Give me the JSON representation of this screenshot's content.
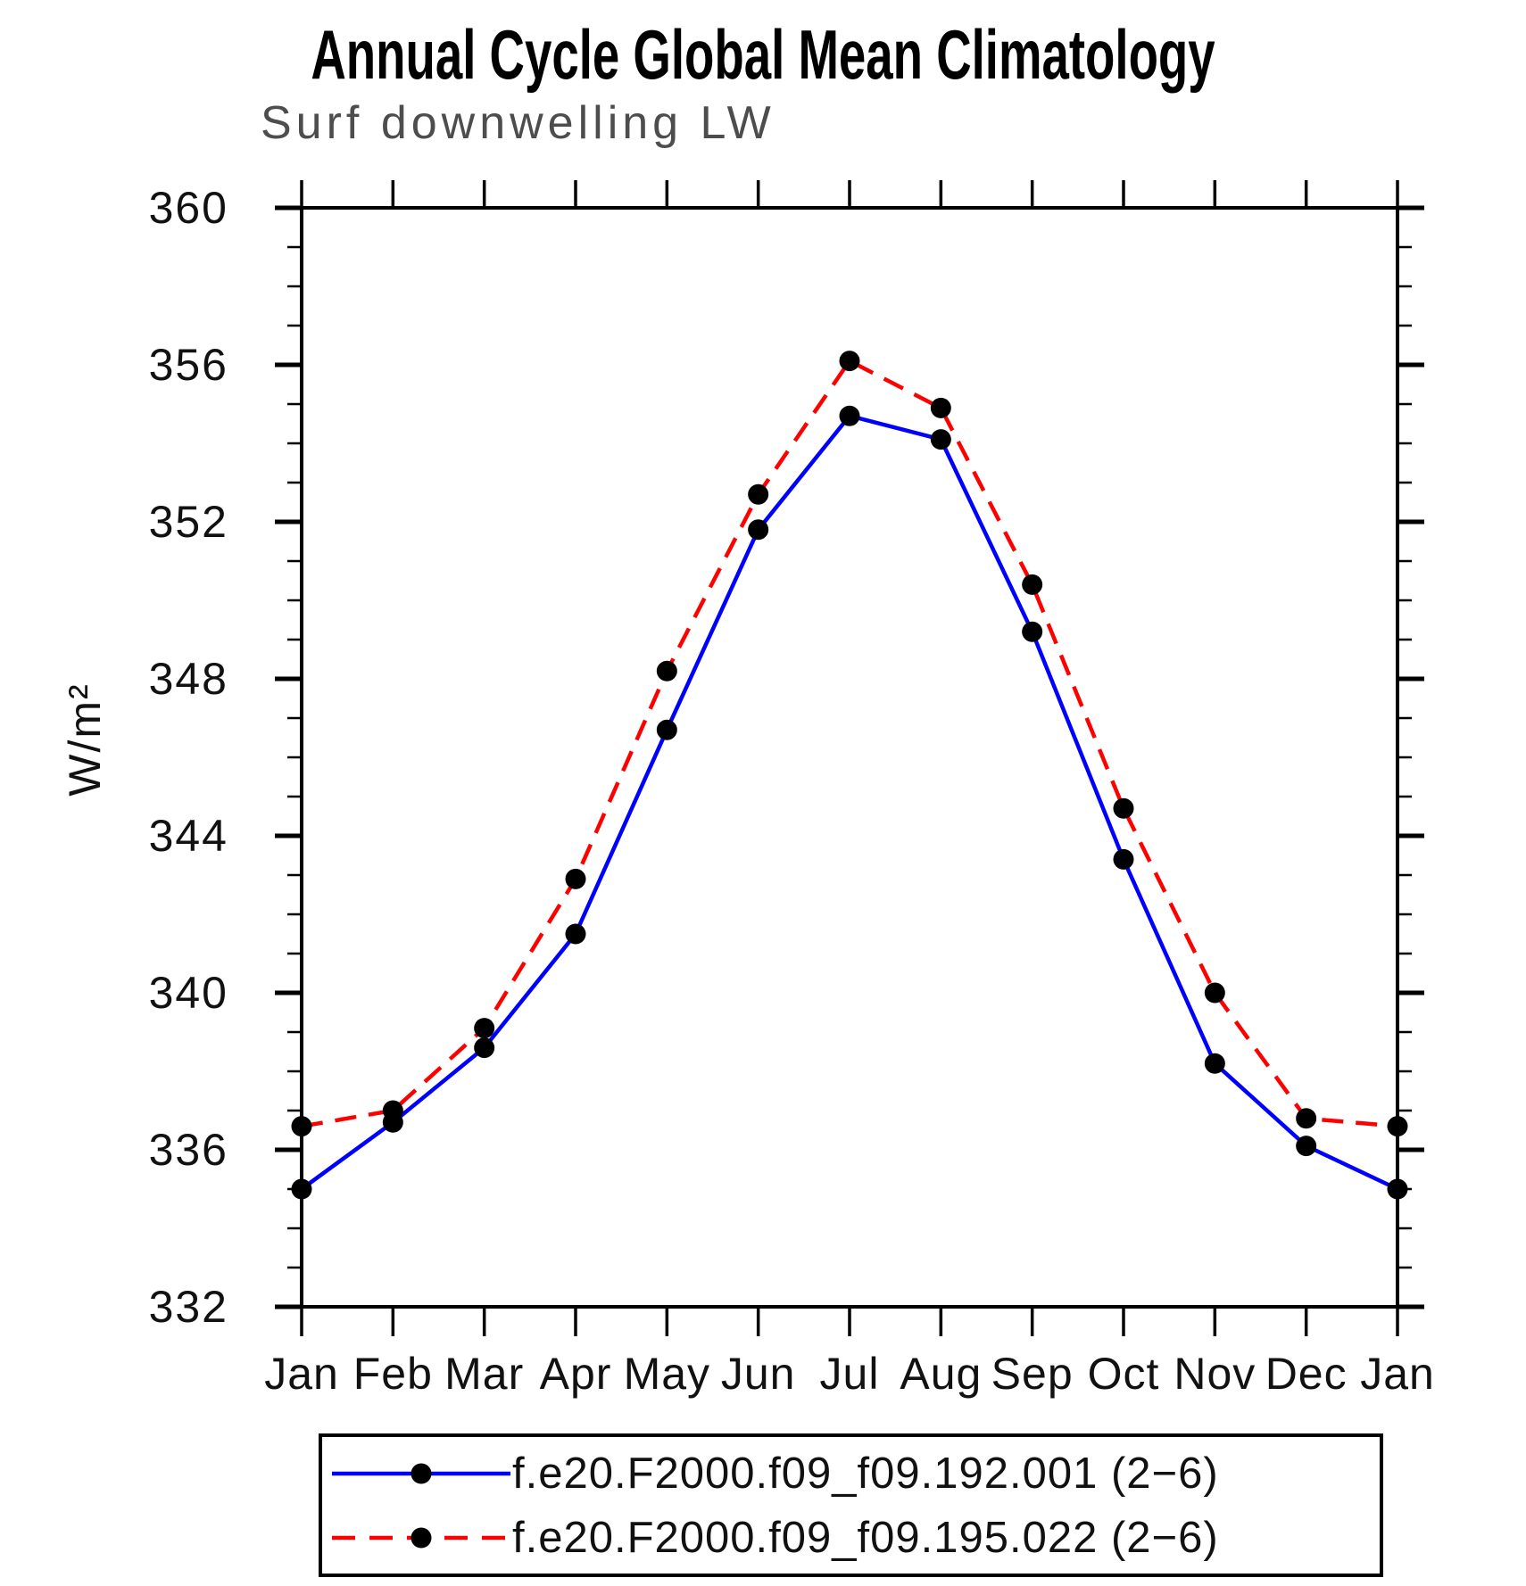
{
  "chart_data": {
    "type": "line",
    "title": "Annual Cycle Global Mean Climatology",
    "subtitle": "Surf downwelling LW",
    "ylabel": "W/m²",
    "xlabel": "",
    "ylim": [
      332,
      360
    ],
    "y_major_tick_step": 4,
    "y_minor_tick_step": 1,
    "y_tick_labels": [
      "332",
      "336",
      "340",
      "344",
      "348",
      "352",
      "356",
      "360"
    ],
    "grid": false,
    "legend_position": "bottom",
    "categories": [
      "Jan",
      "Feb",
      "Mar",
      "Apr",
      "May",
      "Jun",
      "Jul",
      "Aug",
      "Sep",
      "Oct",
      "Nov",
      "Dec",
      "Jan"
    ],
    "series": [
      {
        "name": "f.e20.F2000.f09_f09.192.001 (2−6)",
        "color": "#0000ff",
        "style": "solid",
        "marker": "circle",
        "marker_color": "#000000",
        "values": [
          335.0,
          336.7,
          338.6,
          341.5,
          346.7,
          351.8,
          354.7,
          354.1,
          349.2,
          343.4,
          338.2,
          336.1,
          335.0
        ]
      },
      {
        "name": "f.e20.F2000.f09_f09.195.022 (2−6)",
        "color": "#ff0000",
        "style": "dashed",
        "marker": "circle",
        "marker_color": "#000000",
        "values": [
          336.6,
          337.0,
          339.1,
          342.9,
          348.2,
          352.7,
          356.1,
          354.9,
          350.4,
          344.7,
          340.0,
          336.8,
          336.6
        ]
      }
    ]
  }
}
